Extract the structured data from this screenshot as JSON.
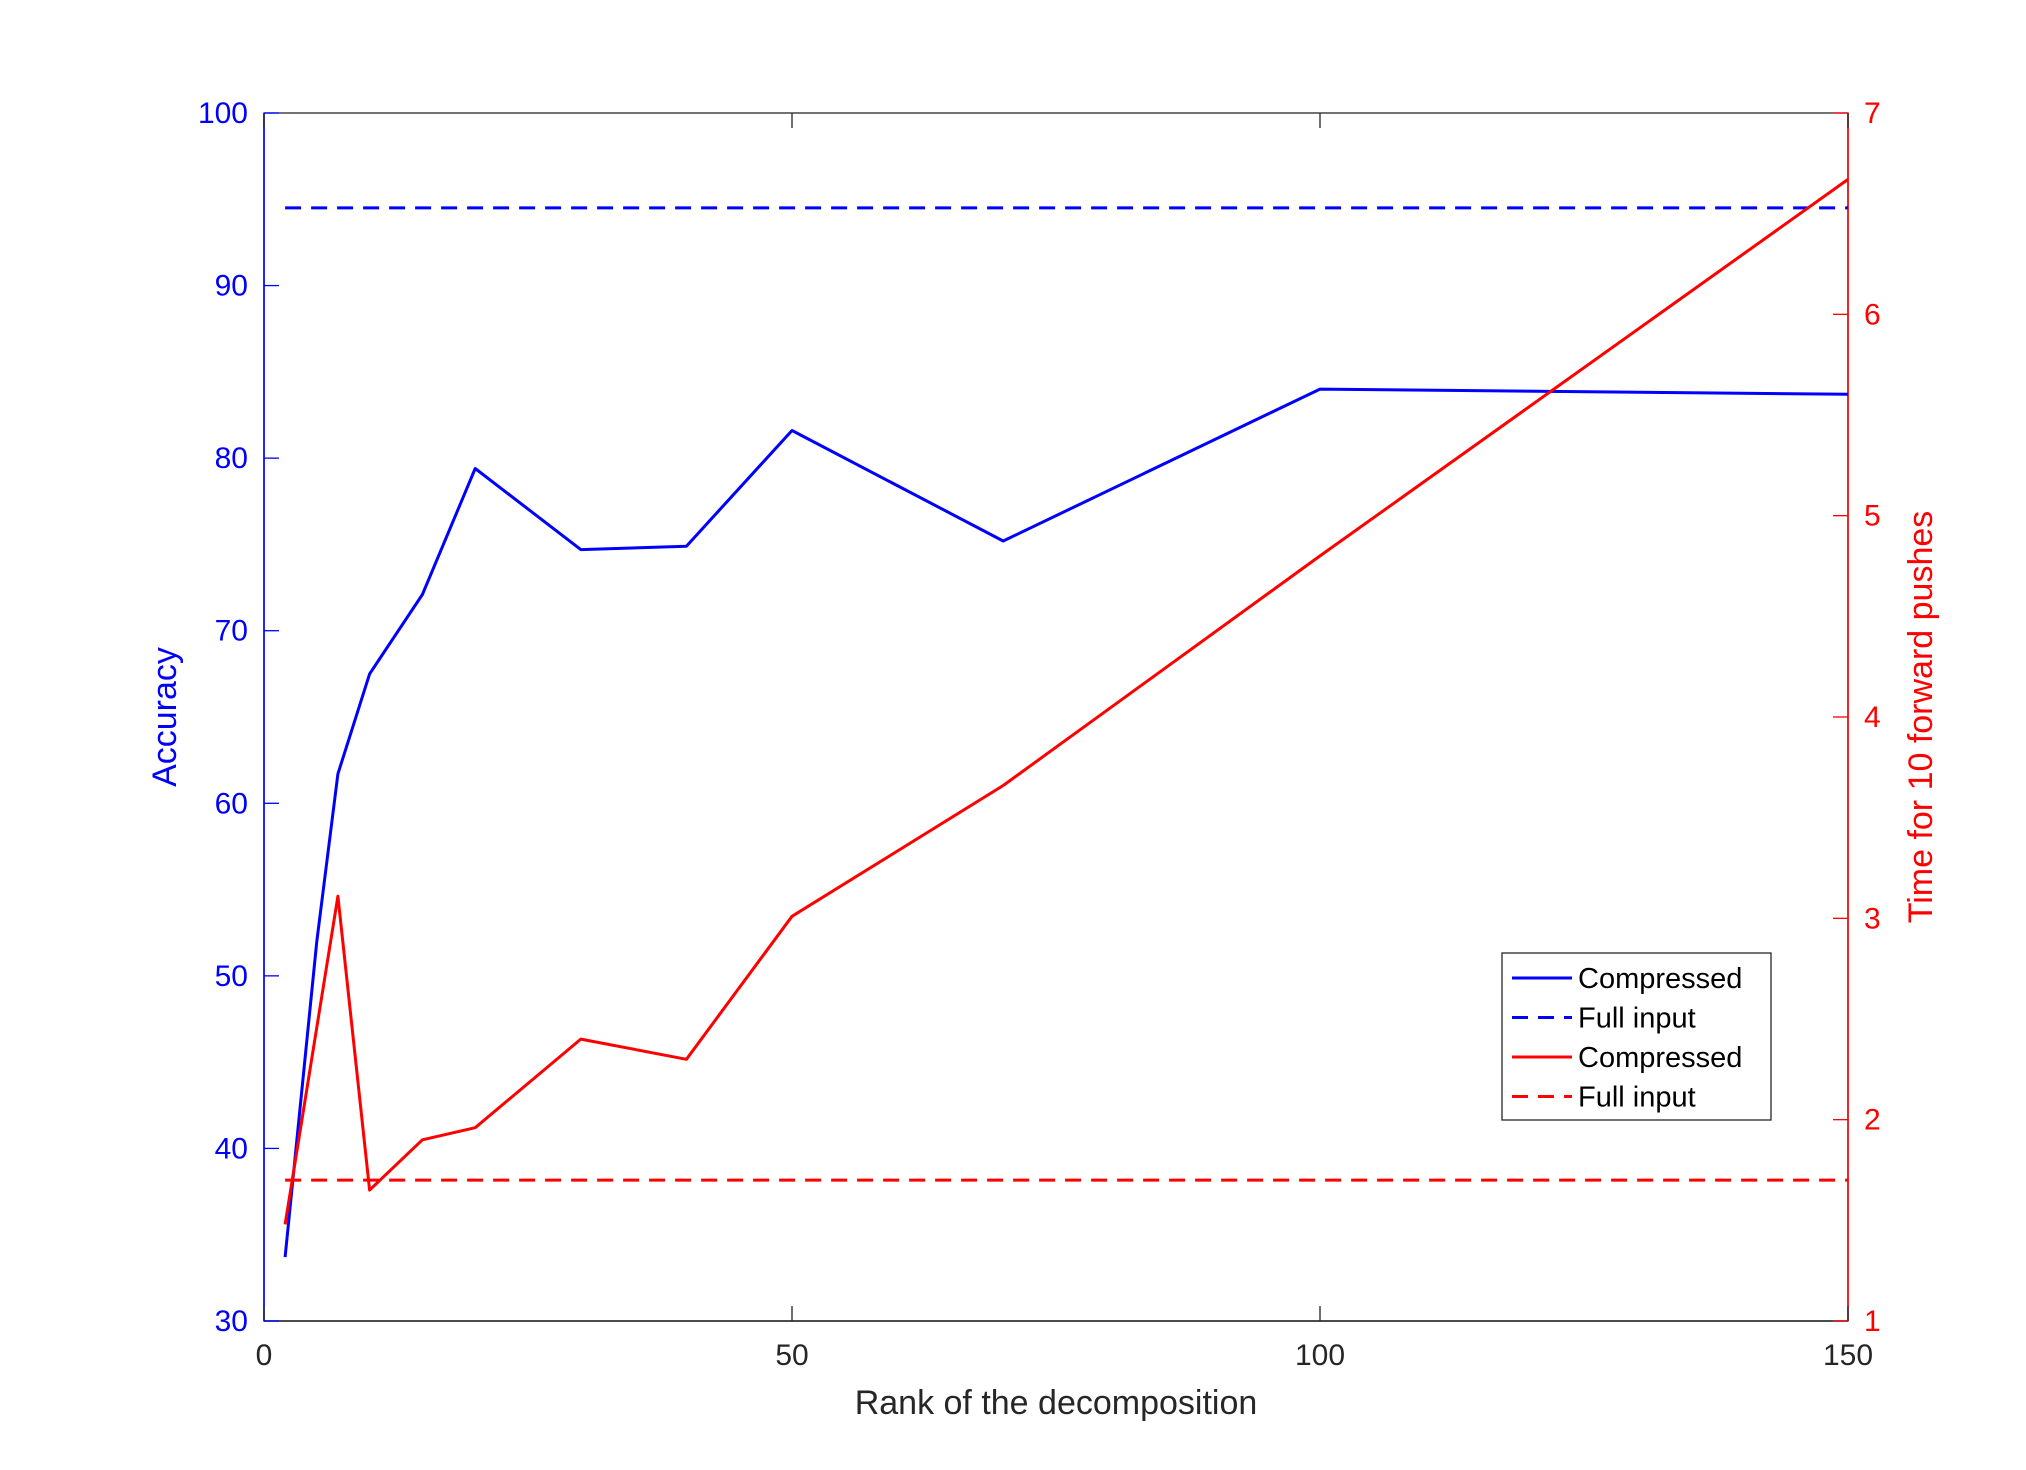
{
  "chart_data": {
    "type": "line",
    "xlabel": "Rank of the decomposition",
    "ylabel_left": "Accuracy",
    "ylabel_right": "Time for 10 forward pushes",
    "xlim": [
      0,
      150
    ],
    "ylim_left": [
      30,
      100
    ],
    "ylim_right": [
      1,
      7
    ],
    "xticks": [
      0,
      50,
      100,
      150
    ],
    "yticks_left": [
      30,
      40,
      50,
      60,
      70,
      80,
      90,
      100
    ],
    "yticks_right": [
      1,
      2,
      3,
      4,
      5,
      6,
      7
    ],
    "grid": false,
    "legend_position": "bottom-right",
    "colors": {
      "left_axis": "#0000ff",
      "right_axis": "#ff0000",
      "bottom_axis": "#262626"
    },
    "series": [
      {
        "name": "Compressed",
        "axis": "left",
        "color": "#0000ff",
        "style": "solid",
        "x": [
          2,
          5,
          7,
          10,
          15,
          20,
          30,
          40,
          50,
          70,
          100,
          150
        ],
        "y": [
          33.7,
          52.0,
          61.7,
          67.5,
          72.1,
          79.4,
          74.7,
          74.9,
          81.6,
          75.2,
          84.0,
          83.7
        ]
      },
      {
        "name": "Full input",
        "axis": "left",
        "color": "#0000ff",
        "style": "dashed",
        "x": [
          2,
          150
        ],
        "y": [
          94.5,
          94.5
        ]
      },
      {
        "name": "Compressed",
        "axis": "right",
        "color": "#ff0000",
        "style": "solid",
        "x": [
          2,
          7,
          10,
          15,
          20,
          30,
          40,
          50,
          70,
          100,
          150
        ],
        "y": [
          1.48,
          3.11,
          1.65,
          1.9,
          1.96,
          2.4,
          2.3,
          3.01,
          3.66,
          4.8,
          6.67
        ]
      },
      {
        "name": "Full input",
        "axis": "right",
        "color": "#ff0000",
        "style": "dashed",
        "x": [
          2,
          150
        ],
        "y": [
          1.7,
          1.7
        ]
      }
    ]
  }
}
